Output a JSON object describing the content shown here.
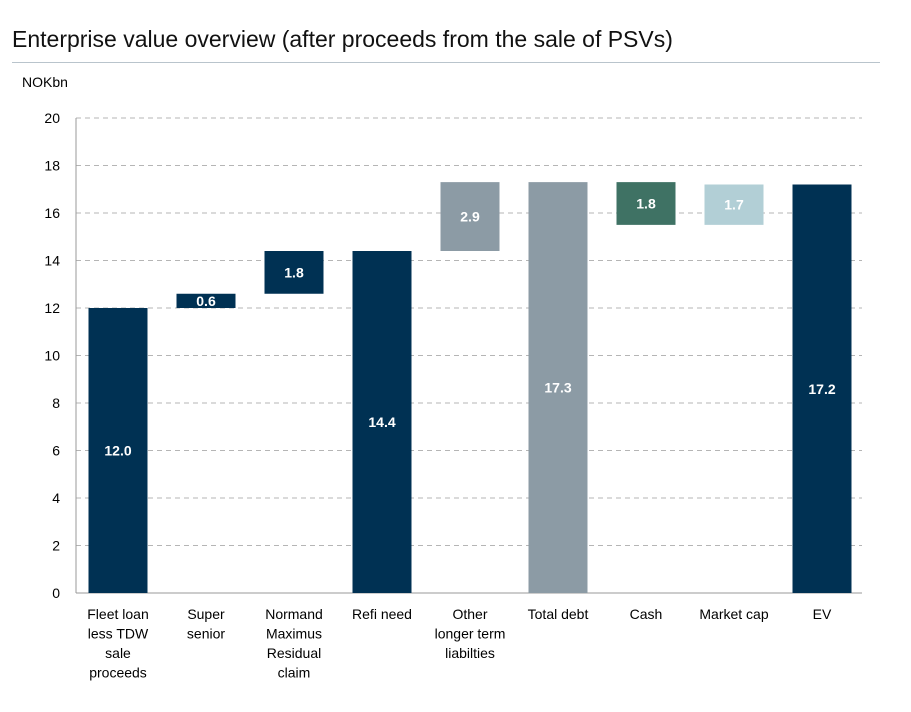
{
  "title": "Enterprise value overview (after proceeds from the sale of PSVs)",
  "unit_label": "NOKbn",
  "chart_data": {
    "type": "bar",
    "subtype": "waterfall",
    "ylim": [
      0,
      20
    ],
    "y_ticks": [
      "0",
      "2",
      "4",
      "6",
      "8",
      "10",
      "12",
      "14",
      "16",
      "18",
      "20"
    ],
    "grid": true,
    "legend": "none",
    "categories": [
      "Fleet loan less TDW sale proceeds",
      "Super senior",
      "Normand Maximus Residual claim",
      "Refi need",
      "Other longer term liabilties",
      "Total debt",
      "Cash",
      "Market cap",
      "EV"
    ],
    "category_lines": [
      [
        "Fleet loan",
        "less TDW",
        "sale",
        "proceeds"
      ],
      [
        "Super",
        "senior"
      ],
      [
        "Normand",
        "Maximus",
        "Residual",
        "claim"
      ],
      [
        "Refi need"
      ],
      [
        "Other",
        "longer term",
        "liabilties"
      ],
      [
        "Total debt"
      ],
      [
        "Cash"
      ],
      [
        "Market cap"
      ],
      [
        "EV"
      ]
    ],
    "bars": [
      {
        "label": "12.0",
        "value": 12.0,
        "base": 0,
        "top": 12.0,
        "color": "#003153",
        "label_color": "#ffffff"
      },
      {
        "label": "0.6",
        "value": 0.6,
        "base": 12.0,
        "top": 12.6,
        "color": "#003153",
        "label_color": "#ffffff"
      },
      {
        "label": "1.8",
        "value": 1.8,
        "base": 12.6,
        "top": 14.4,
        "color": "#003153",
        "label_color": "#ffffff"
      },
      {
        "label": "14.4",
        "value": 14.4,
        "base": 0,
        "top": 14.4,
        "color": "#003153",
        "label_color": "#ffffff"
      },
      {
        "label": "2.9",
        "value": 2.9,
        "base": 14.4,
        "top": 17.3,
        "color": "#8c9ba5",
        "label_color": "#ffffff"
      },
      {
        "label": "17.3",
        "value": 17.3,
        "base": 0,
        "top": 17.3,
        "color": "#8c9ba5",
        "label_color": "#ffffff"
      },
      {
        "label": "1.8",
        "value": 1.8,
        "base": 15.5,
        "top": 17.3,
        "color": "#3f7264",
        "label_color": "#ffffff"
      },
      {
        "label": "1.7",
        "value": 1.7,
        "base": 15.5,
        "top": 17.2,
        "color": "#b2cfd6",
        "label_color": "#ffffff"
      },
      {
        "label": "17.2",
        "value": 17.2,
        "base": 0,
        "top": 17.2,
        "color": "#003153",
        "label_color": "#ffffff"
      }
    ]
  }
}
